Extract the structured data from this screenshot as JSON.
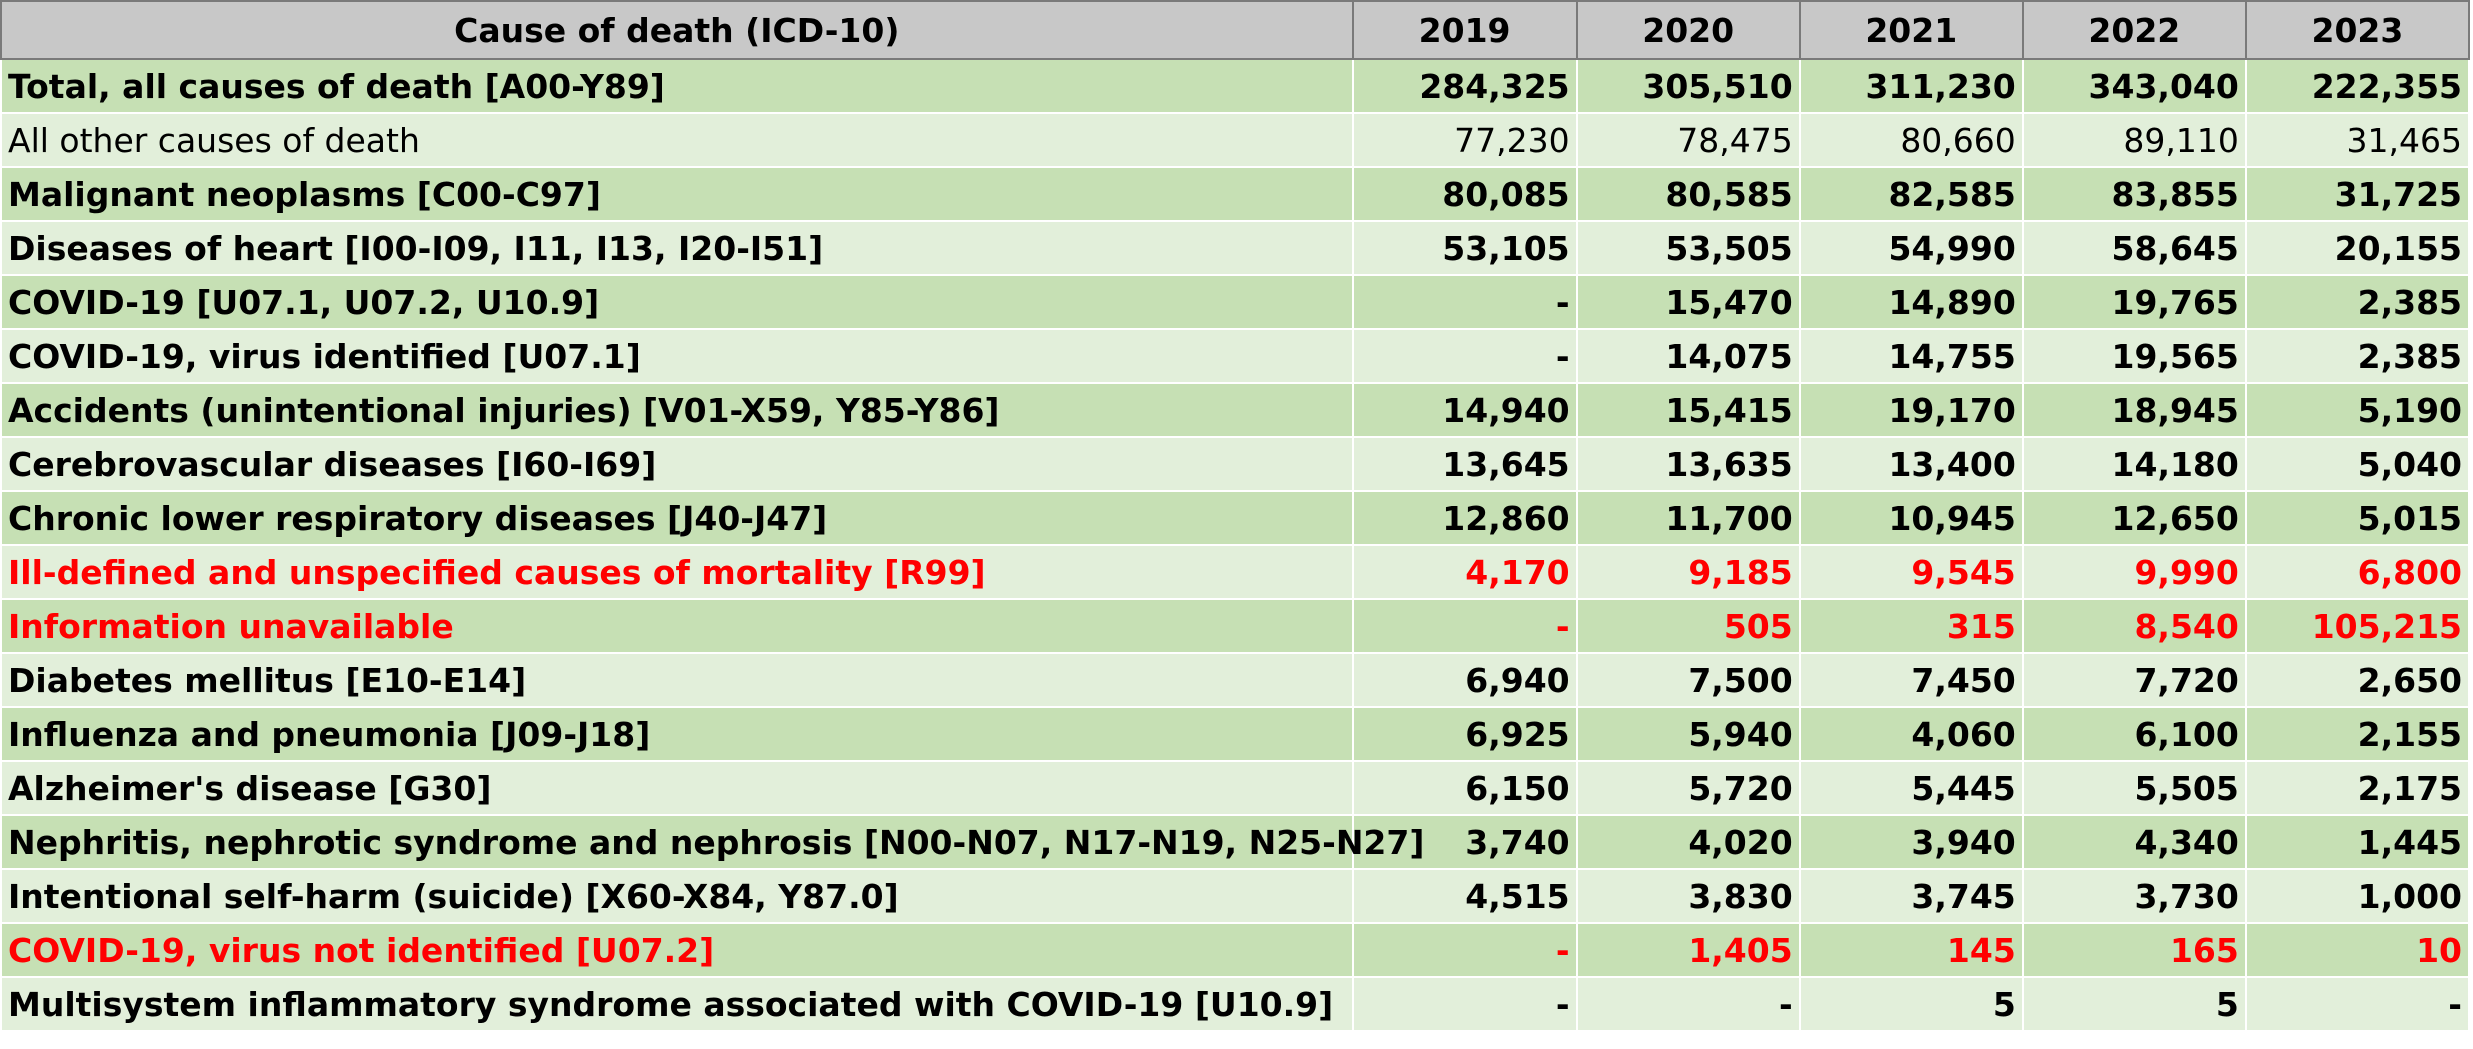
{
  "colors": {
    "header_bg": "#c8c8c8",
    "row_dark": "#c6e0b4",
    "row_light": "#e2efda",
    "highlight_text": "#ff0000",
    "text": "#000000"
  },
  "chart_data": {
    "type": "table",
    "header": [
      "Cause of death (ICD-10)",
      "2019",
      "2020",
      "2021",
      "2022",
      "2023"
    ],
    "rows": [
      {
        "cause": "Total, all causes of death [A00-Y89]",
        "values": [
          "284,325",
          "305,510",
          "311,230",
          "343,040",
          "222,355"
        ],
        "bold": true,
        "red": false
      },
      {
        "cause": "All other causes of death",
        "values": [
          "77,230",
          "78,475",
          "80,660",
          "89,110",
          "31,465"
        ],
        "bold": false,
        "red": false
      },
      {
        "cause": "Malignant neoplasms [C00-C97]",
        "values": [
          "80,085",
          "80,585",
          "82,585",
          "83,855",
          "31,725"
        ],
        "bold": true,
        "red": false
      },
      {
        "cause": "Diseases of heart [I00-I09, I11, I13, I20-I51]",
        "values": [
          "53,105",
          "53,505",
          "54,990",
          "58,645",
          "20,155"
        ],
        "bold": true,
        "red": false
      },
      {
        "cause": "COVID-19 [U07.1, U07.2, U10.9]",
        "values": [
          "-",
          "15,470",
          "14,890",
          "19,765",
          "2,385"
        ],
        "bold": true,
        "red": false
      },
      {
        "cause": "COVID-19, virus identified  [U07.1]",
        "values": [
          "-",
          "14,075",
          "14,755",
          "19,565",
          "2,385"
        ],
        "bold": true,
        "red": false
      },
      {
        "cause": "Accidents (unintentional injuries) [V01-X59, Y85-Y86]",
        "values": [
          "14,940",
          "15,415",
          "19,170",
          "18,945",
          "5,190"
        ],
        "bold": true,
        "red": false
      },
      {
        "cause": "Cerebrovascular diseases [I60-I69]",
        "values": [
          "13,645",
          "13,635",
          "13,400",
          "14,180",
          "5,040"
        ],
        "bold": true,
        "red": false
      },
      {
        "cause": "Chronic lower respiratory diseases [J40-J47]",
        "values": [
          "12,860",
          "11,700",
          "10,945",
          "12,650",
          "5,015"
        ],
        "bold": true,
        "red": false
      },
      {
        "cause": "Ill-defined and unspecified causes of mortality [R99]",
        "values": [
          "4,170",
          "9,185",
          "9,545",
          "9,990",
          "6,800"
        ],
        "bold": true,
        "red": true
      },
      {
        "cause": "Information unavailable",
        "values": [
          "-",
          "505",
          "315",
          "8,540",
          "105,215"
        ],
        "bold": true,
        "red": true
      },
      {
        "cause": "Diabetes mellitus [E10-E14]",
        "values": [
          "6,940",
          "7,500",
          "7,450",
          "7,720",
          "2,650"
        ],
        "bold": true,
        "red": false
      },
      {
        "cause": "Influenza and pneumonia [J09-J18]",
        "values": [
          "6,925",
          "5,940",
          "4,060",
          "6,100",
          "2,155"
        ],
        "bold": true,
        "red": false
      },
      {
        "cause": "Alzheimer's disease [G30]",
        "values": [
          "6,150",
          "5,720",
          "5,445",
          "5,505",
          "2,175"
        ],
        "bold": true,
        "red": false
      },
      {
        "cause": "Nephritis, nephrotic syndrome and nephrosis [N00-N07, N17-N19, N25-N27]",
        "values": [
          "3,740",
          "4,020",
          "3,940",
          "4,340",
          "1,445"
        ],
        "bold": true,
        "red": false
      },
      {
        "cause": "Intentional self-harm (suicide) [X60-X84, Y87.0]",
        "values": [
          "4,515",
          "3,830",
          "3,745",
          "3,730",
          "1,000"
        ],
        "bold": true,
        "red": false
      },
      {
        "cause": "COVID-19, virus not identified  [U07.2]",
        "values": [
          "-",
          "1,405",
          "145",
          "165",
          "10"
        ],
        "bold": true,
        "red": true
      },
      {
        "cause": "Multisystem inflammatory syndrome associated with COVID-19 [U10.9]",
        "values": [
          "-",
          "-",
          "5",
          "5",
          "-"
        ],
        "bold": true,
        "red": false
      }
    ]
  }
}
